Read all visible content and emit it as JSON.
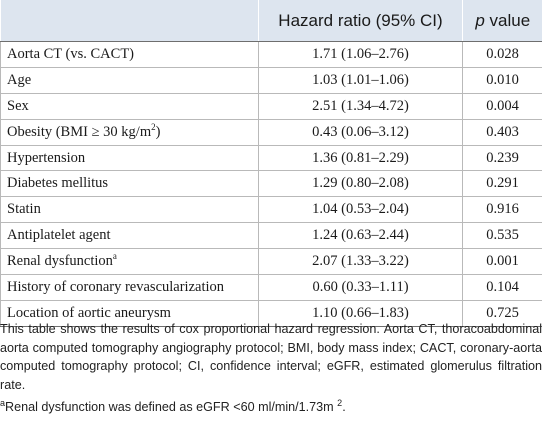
{
  "table": {
    "headers": {
      "variable": "",
      "hazard_ratio": "Hazard ratio (95% CI)",
      "p_letter": "p",
      "p_suffix": " value"
    },
    "rows": [
      {
        "label": "Aorta CT (vs. CACT)",
        "hr": "1.71 (1.06–2.76)",
        "p": "0.028"
      },
      {
        "label": "Age",
        "hr": "1.03 (1.01–1.06)",
        "p": "0.010"
      },
      {
        "label": "Sex",
        "hr": "2.51 (1.34–4.72)",
        "p": "0.004"
      },
      {
        "label_pre": "Obesity (BMI ≥ 30 kg/m",
        "label_sup": "2",
        "label_post": ")",
        "hr": "0.43 (0.06–3.12)",
        "p": "0.403"
      },
      {
        "label": "Hypertension",
        "hr": "1.36 (0.81–2.29)",
        "p": "0.239"
      },
      {
        "label": "Diabetes mellitus",
        "hr": "1.29 (0.80–2.08)",
        "p": "0.291"
      },
      {
        "label": "Statin",
        "hr": "1.04 (0.53–2.04)",
        "p": "0.916"
      },
      {
        "label": "Antiplatelet agent",
        "hr": "1.24 (0.63–2.44)",
        "p": "0.535"
      },
      {
        "label_pre": "Renal dysfunction",
        "label_sup": "a",
        "label_post": "",
        "hr": "2.07 (1.33–3.22)",
        "p": "0.001"
      },
      {
        "label": "History of coronary revascularization",
        "hr": "0.60 (0.33–1.11)",
        "p": "0.104"
      },
      {
        "label": "Location of aortic aneurysm",
        "hr": "1.10 (0.66–1.83)",
        "p": "0.725"
      }
    ]
  },
  "notes": {
    "description": "This table shows the results of cox proportional hazard regression. Aorta CT, thoracoabdominal aorta computed tomography angiography protocol; BMI, body mass index; CACT, coronary-aorta computed tomography protocol; CI, confidence interval; eGFR, estimated glomerulus filtration rate.",
    "footnote_marker": "a",
    "footnote_text": "Renal dysfunction was defined as eGFR <60 ml/min/1.73m ",
    "footnote_sup": "2",
    "footnote_end": "."
  },
  "colors": {
    "header_background": "#dde5ef",
    "cell_border": "#b9b9b9",
    "rule": "#6e6e6e"
  }
}
